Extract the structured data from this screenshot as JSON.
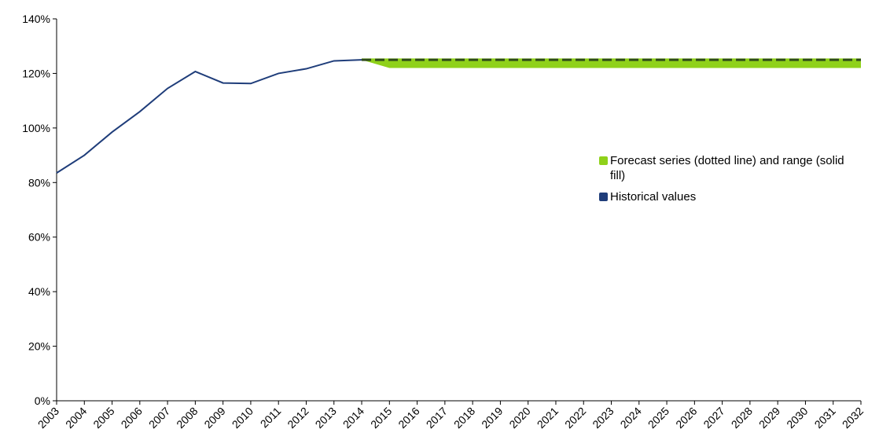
{
  "chart_data": {
    "type": "line",
    "categories": [
      "2003",
      "2004",
      "2005",
      "2006",
      "2007",
      "2008",
      "2009",
      "2010",
      "2011",
      "2012",
      "2013",
      "2014",
      "2015",
      "2016",
      "2017",
      "2018",
      "2019",
      "2020",
      "2021",
      "2022",
      "2023",
      "2024",
      "2025",
      "2026",
      "2027",
      "2028",
      "2029",
      "2030",
      "2031",
      "2032"
    ],
    "series": [
      {
        "name": "Forecast series (dotted line) and range (solid fill)",
        "color": "#8fd11a",
        "line_color": "#2e4a1a",
        "values": [
          null,
          null,
          null,
          null,
          null,
          null,
          null,
          null,
          null,
          null,
          null,
          125,
          125,
          125,
          125,
          125,
          125,
          125,
          125,
          125,
          125,
          125,
          125,
          125,
          125,
          125,
          125,
          125,
          125,
          125
        ],
        "range_high": [
          null,
          null,
          null,
          null,
          null,
          null,
          null,
          null,
          null,
          null,
          null,
          125.5,
          125.5,
          125.5,
          125.5,
          125.5,
          125.5,
          125.5,
          125.5,
          125.5,
          125.5,
          125.5,
          125.5,
          125.5,
          125.5,
          125.5,
          125.5,
          125.5,
          125.5,
          125.5
        ],
        "range_low": [
          null,
          null,
          null,
          null,
          null,
          null,
          null,
          null,
          null,
          null,
          null,
          125,
          122,
          122,
          122,
          122,
          122,
          122,
          122,
          122,
          122,
          122,
          122,
          122,
          122,
          122,
          122,
          122,
          122,
          122
        ]
      },
      {
        "name": "Historical values",
        "color": "#1f3d7a",
        "values": [
          83.5,
          90,
          98.5,
          106,
          114.5,
          120.7,
          116.5,
          116.3,
          120,
          121.7,
          124.6,
          125,
          null,
          null,
          null,
          null,
          null,
          null,
          null,
          null,
          null,
          null,
          null,
          null,
          null,
          null,
          null,
          null,
          null,
          null
        ]
      }
    ],
    "ylim": [
      0,
      140
    ],
    "yticks": [
      {
        "value": 0,
        "label": "0%"
      },
      {
        "value": 20,
        "label": "20%"
      },
      {
        "value": 40,
        "label": "40%"
      },
      {
        "value": 60,
        "label": "60%"
      },
      {
        "value": 80,
        "label": "80%"
      },
      {
        "value": 100,
        "label": "100%"
      },
      {
        "value": 120,
        "label": "120%"
      },
      {
        "value": 140,
        "label": "140%"
      }
    ],
    "legend": "right"
  }
}
